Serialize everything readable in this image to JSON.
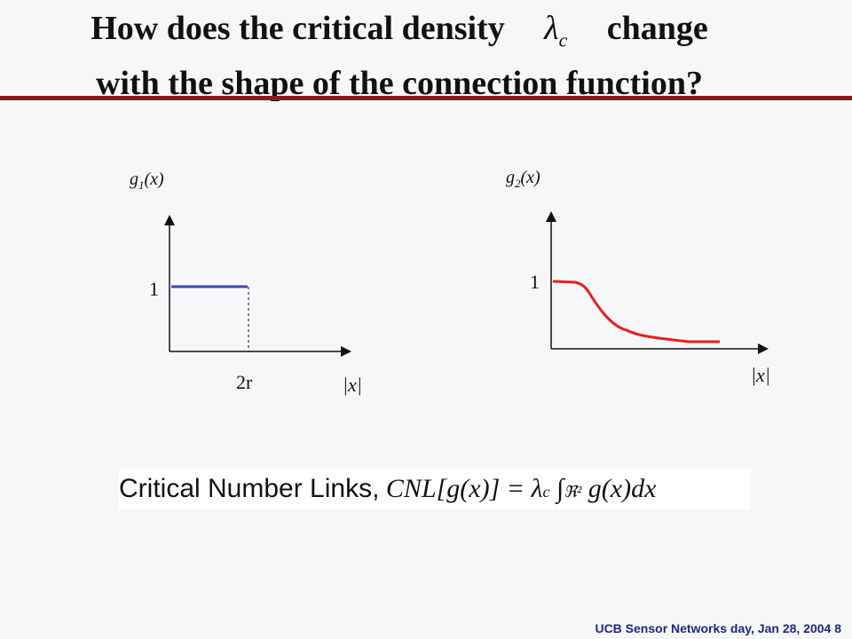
{
  "title": {
    "line1_before": "How does the critical density",
    "lambda_symbol": "λ",
    "lambda_sub": "c",
    "line1_after": "change",
    "line2": "with the shape of the connection function?"
  },
  "left_plot": {
    "ylabel_main": "g",
    "ylabel_sub": "1",
    "ylabel_arg": "(x)",
    "y_tick": "1",
    "x_tick": "2r",
    "xlabel": "|x|",
    "color": "#3a48b8"
  },
  "right_plot": {
    "ylabel_main": "g",
    "ylabel_sub": "2",
    "ylabel_arg": "(x)",
    "y_tick": "1",
    "xlabel": "|x|",
    "color": "#e8201a"
  },
  "formula": {
    "text": "Critical Number Links,",
    "lhs": "CNL[g(x)] = λ",
    "lhs_sub": "c",
    "integral": "∫",
    "domain": "ℜ²",
    "integrand": "g(x)dx"
  },
  "footer": "UCB Sensor Networks day, Jan 28, 2004  8"
}
